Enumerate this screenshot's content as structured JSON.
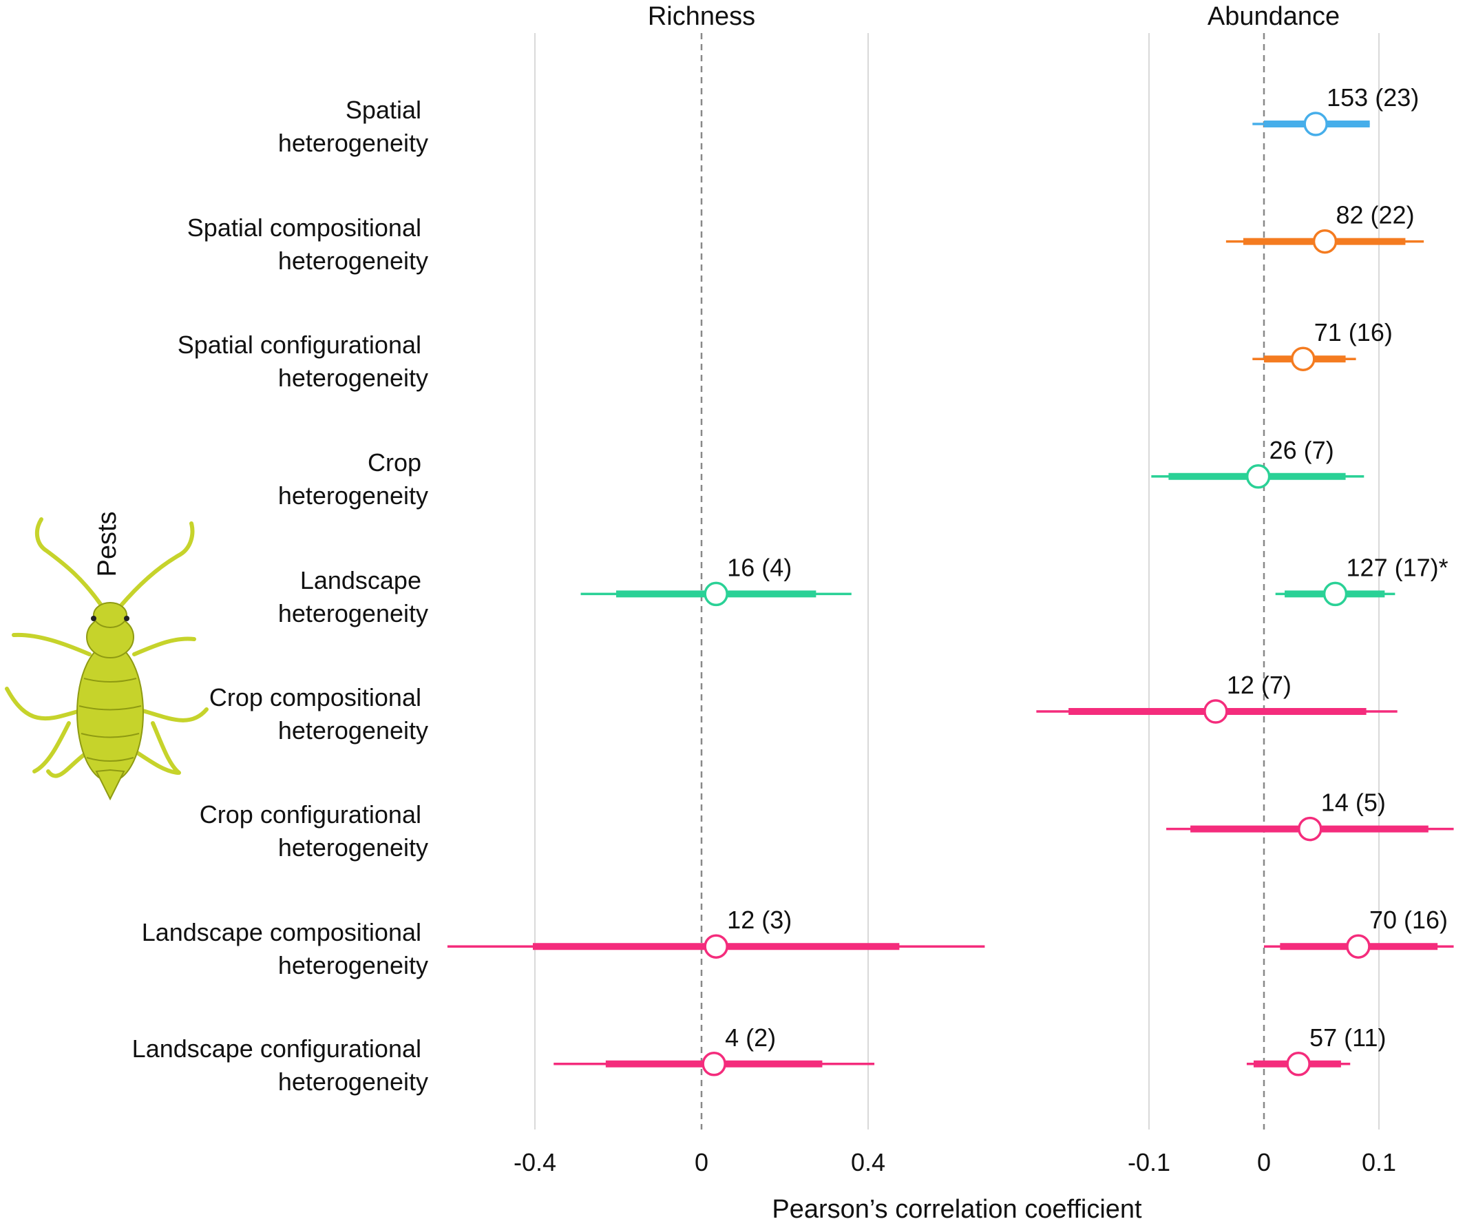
{
  "chart_data": {
    "type": "forest",
    "xlabel": "Pearson’s correlation coefficient",
    "side_label": "Pests",
    "categories": [
      "Spatial heterogeneity",
      "Spatial compositional heterogeneity",
      "Spatial configurational heterogeneity",
      "Crop heterogeneity",
      "Landscape heterogeneity",
      "Crop compositional heterogeneity",
      "Crop configurational heterogeneity",
      "Landscape compositional heterogeneity",
      "Landscape configurational heterogeneity"
    ],
    "category_lines": [
      [
        "Spatial",
        "heterogeneity"
      ],
      [
        "Spatial compositional",
        "heterogeneity"
      ],
      [
        "Spatial configurational",
        "heterogeneity"
      ],
      [
        "Crop",
        "heterogeneity"
      ],
      [
        "Landscape",
        "heterogeneity"
      ],
      [
        "Crop compositional",
        "heterogeneity"
      ],
      [
        "Crop configurational",
        "heterogeneity"
      ],
      [
        "Landscape compositional",
        "heterogeneity"
      ],
      [
        "Landscape configurational",
        "heterogeneity"
      ]
    ],
    "colors": {
      "blue": "#46AEEA",
      "orange": "#F47B20",
      "green": "#2AD196",
      "pink": "#F42C7C",
      "gridline": "#D9D9D9",
      "zero_line": "#888888",
      "insect": "#C6D32B",
      "insect_dark": "#8E9A12"
    },
    "panels": [
      {
        "title": "Richness",
        "xlim": [
          -0.6,
          0.6
        ],
        "ticks": [
          -0.4,
          0,
          0.4
        ],
        "tick_labels": [
          "-0.4",
          "0",
          "0.4"
        ],
        "points": [
          {
            "row": 4,
            "estimate": 0.035,
            "ci_inner": [
              -0.205,
              0.275
            ],
            "ci_outer": [
              -0.29,
              0.36
            ],
            "label": "16 (4)",
            "color": "green"
          },
          {
            "row": 7,
            "estimate": 0.035,
            "ci_inner": [
              -0.405,
              0.475
            ],
            "ci_outer": [
              -0.61,
              0.68
            ],
            "label": "12 (3)",
            "color": "pink"
          },
          {
            "row": 8,
            "estimate": 0.03,
            "ci_inner": [
              -0.23,
              0.29
            ],
            "ci_outer": [
              -0.355,
              0.415
            ],
            "label": "4 (2)",
            "color": "pink"
          }
        ]
      },
      {
        "title": "Abundance",
        "xlim": [
          -0.115,
          0.17
        ],
        "ticks": [
          -0.1,
          0,
          0.1
        ],
        "tick_labels": [
          "-0.1",
          "0",
          "0.1"
        ],
        "points": [
          {
            "row": 0,
            "estimate": 0.045,
            "ci_inner": [
              0.0,
              0.092
            ],
            "ci_outer": [
              -0.01,
              0.078
            ],
            "label": "153 (23)",
            "color": "blue"
          },
          {
            "row": 1,
            "estimate": 0.053,
            "ci_inner": [
              -0.018,
              0.123
            ],
            "ci_outer": [
              -0.033,
              0.139
            ],
            "label": "82 (22)",
            "color": "orange"
          },
          {
            "row": 2,
            "estimate": 0.034,
            "ci_inner": [
              0.0,
              0.071
            ],
            "ci_outer": [
              -0.01,
              0.08
            ],
            "label": "71 (16)",
            "color": "orange"
          },
          {
            "row": 3,
            "estimate": -0.005,
            "ci_inner": [
              -0.083,
              0.071
            ],
            "ci_outer": [
              -0.098,
              0.087
            ],
            "label": "26 (7)",
            "color": "green"
          },
          {
            "row": 4,
            "estimate": 0.062,
            "ci_inner": [
              0.018,
              0.105
            ],
            "ci_outer": [
              0.01,
              0.114
            ],
            "label": "127 (17)*",
            "color": "green"
          },
          {
            "row": 5,
            "estimate": -0.042,
            "ci_inner": [
              -0.17,
              0.089
            ],
            "ci_outer": [
              -0.198,
              0.116
            ],
            "label": "12 (7)",
            "color": "pink"
          },
          {
            "row": 6,
            "estimate": 0.04,
            "ci_inner": [
              -0.064,
              0.143
            ],
            "ci_outer": [
              -0.085,
              0.165
            ],
            "label": "14 (5)",
            "color": "pink"
          },
          {
            "row": 7,
            "estimate": 0.082,
            "ci_inner": [
              0.014,
              0.151
            ],
            "ci_outer": [
              0.0,
              0.165
            ],
            "label": "70 (16)",
            "color": "pink"
          },
          {
            "row": 8,
            "estimate": 0.03,
            "ci_inner": [
              -0.009,
              0.067
            ],
            "ci_outer": [
              -0.015,
              0.075
            ],
            "label": "57 (11)",
            "color": "pink"
          }
        ]
      }
    ]
  }
}
